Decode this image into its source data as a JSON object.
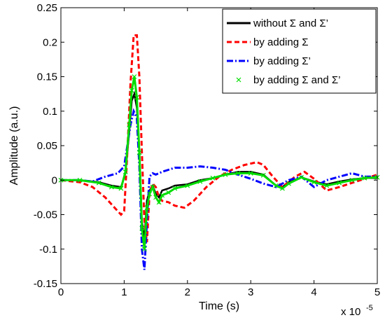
{
  "chart_data": {
    "type": "line",
    "xlabel": "Time (s)",
    "ylabel": "Amplitude (a.u.)",
    "x_multiplier": "x 10",
    "x_multiplier_exp": "-5",
    "xlim": [
      0,
      5
    ],
    "ylim": [
      -0.15,
      0.25
    ],
    "x_ticks": [
      "0",
      "1",
      "2",
      "3",
      "4",
      "5"
    ],
    "y_ticks": [
      "-0.15",
      "-0.1",
      "-0.05",
      "0",
      "0.05",
      "0.1",
      "0.15",
      "0.2",
      "0.25"
    ],
    "grid": false,
    "legend_position": "top-right",
    "series": [
      {
        "name": "without Σ and Σ’",
        "color": "#000000",
        "style": "solid",
        "x": [
          0,
          0.3,
          0.6,
          0.8,
          0.95,
          1.02,
          1.08,
          1.12,
          1.16,
          1.2,
          1.24,
          1.28,
          1.32,
          1.36,
          1.4,
          1.45,
          1.5,
          1.55,
          1.6,
          1.7,
          1.8,
          2.0,
          2.2,
          2.4,
          2.6,
          2.8,
          3.0,
          3.2,
          3.4,
          3.5,
          3.6,
          3.8,
          4.0,
          4.2,
          4.4,
          4.6,
          4.8,
          5.0
        ],
        "y": [
          0,
          0,
          -0.003,
          -0.008,
          -0.01,
          0.01,
          0.07,
          0.115,
          0.125,
          0.105,
          0.04,
          -0.06,
          -0.085,
          -0.03,
          -0.015,
          -0.008,
          -0.02,
          -0.025,
          -0.015,
          -0.012,
          -0.008,
          -0.006,
          0,
          0.003,
          0.008,
          0.012,
          0.012,
          0.008,
          -0.008,
          -0.01,
          -0.003,
          0.004,
          -0.002,
          -0.006,
          -0.002,
          0.001,
          0.003,
          0.003
        ]
      },
      {
        "name": "by adding Σ",
        "color": "#ff0000",
        "style": "dashed",
        "x": [
          0,
          0.3,
          0.5,
          0.7,
          0.85,
          0.95,
          1.0,
          1.05,
          1.1,
          1.15,
          1.2,
          1.24,
          1.28,
          1.32,
          1.36,
          1.4,
          1.45,
          1.5,
          1.55,
          1.6,
          1.7,
          1.8,
          1.95,
          2.1,
          2.3,
          2.5,
          2.7,
          2.9,
          3.1,
          3.2,
          3.35,
          3.5,
          3.7,
          3.85,
          4.0,
          4.2,
          4.4,
          4.6,
          4.8,
          5.0
        ],
        "y": [
          0,
          -0.003,
          -0.01,
          -0.025,
          -0.04,
          -0.05,
          -0.045,
          0.04,
          0.14,
          0.21,
          0.21,
          0.15,
          0.04,
          -0.06,
          -0.09,
          -0.02,
          -0.005,
          -0.01,
          -0.025,
          -0.03,
          -0.032,
          -0.037,
          -0.04,
          -0.03,
          -0.01,
          0.005,
          0.015,
          0.022,
          0.026,
          0.022,
          0.005,
          -0.01,
          0.005,
          0.012,
          0.002,
          -0.015,
          -0.01,
          -0.004,
          0.002,
          0.008
        ]
      },
      {
        "name": "by adding Σ’",
        "color": "#0000ff",
        "style": "dashdot",
        "x": [
          0,
          0.3,
          0.5,
          0.7,
          0.9,
          1.0,
          1.05,
          1.1,
          1.15,
          1.2,
          1.24,
          1.28,
          1.32,
          1.36,
          1.4,
          1.45,
          1.5,
          1.6,
          1.7,
          1.8,
          2.0,
          2.2,
          2.4,
          2.6,
          2.8,
          3.0,
          3.2,
          3.4,
          3.5,
          3.6,
          3.8,
          4.0,
          4.2,
          4.4,
          4.6,
          4.8,
          5.0
        ],
        "y": [
          0,
          0,
          -0.002,
          0.005,
          0.01,
          0.02,
          0.05,
          0.08,
          0.1,
          0.09,
          0.02,
          -0.1,
          -0.13,
          -0.06,
          0.005,
          0.01,
          0.008,
          0.012,
          0.015,
          0.018,
          0.018,
          0.02,
          0.018,
          0.015,
          0.008,
          0.002,
          -0.005,
          -0.01,
          -0.005,
          0,
          0.005,
          -0.01,
          0,
          0.005,
          0.01,
          0.005,
          0.005
        ]
      },
      {
        "name": "by adding Σ and Σ’",
        "color": "#00dd00",
        "style": "x-markers",
        "x": [
          0,
          0.3,
          0.6,
          0.8,
          0.95,
          1.02,
          1.08,
          1.12,
          1.16,
          1.2,
          1.24,
          1.28,
          1.32,
          1.36,
          1.4,
          1.45,
          1.5,
          1.55,
          1.6,
          1.7,
          1.8,
          2.0,
          2.2,
          2.4,
          2.6,
          2.8,
          3.0,
          3.2,
          3.4,
          3.5,
          3.6,
          3.8,
          4.0,
          4.2,
          4.4,
          4.6,
          4.8,
          5.0
        ],
        "y": [
          0,
          0,
          -0.004,
          -0.01,
          -0.012,
          0.012,
          0.08,
          0.13,
          0.15,
          0.12,
          0.04,
          -0.07,
          -0.1,
          -0.04,
          -0.02,
          -0.01,
          -0.025,
          -0.032,
          -0.022,
          -0.018,
          -0.012,
          -0.008,
          -0.002,
          0.003,
          0.008,
          0.01,
          0.01,
          0.007,
          -0.008,
          -0.012,
          -0.005,
          0.004,
          -0.003,
          -0.008,
          -0.004,
          0,
          0.003,
          0.004
        ]
      }
    ]
  }
}
